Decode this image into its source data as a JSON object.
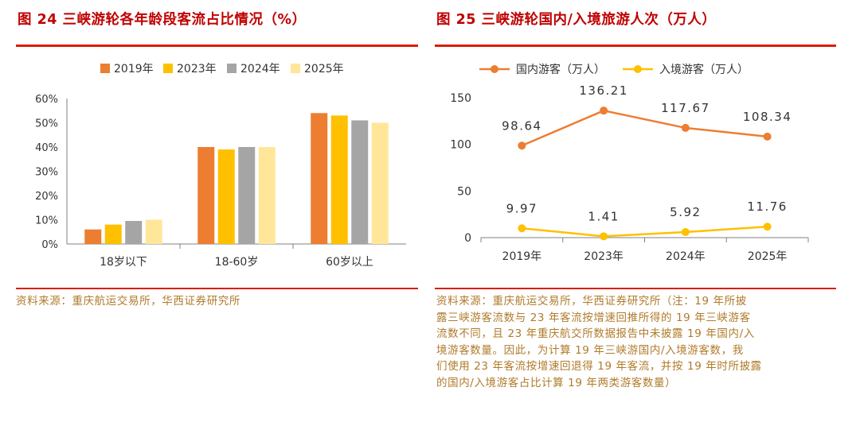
{
  "left": {
    "title": "图 24 三峡游轮各年龄段客流占比情况（%）",
    "source": "资料来源：重庆航运交易所，华西证券研究所",
    "chart_data": {
      "type": "bar",
      "title": "图 24 三峡游轮各年龄段客流占比情况（%）",
      "categories": [
        "18岁以下",
        "18-60岁",
        "60岁以上"
      ],
      "series": [
        {
          "name": "2019年",
          "color": "#ed7d31",
          "values": [
            6,
            40,
            54
          ]
        },
        {
          "name": "2023年",
          "color": "#ffc000",
          "values": [
            8,
            39,
            53
          ]
        },
        {
          "name": "2024年",
          "color": "#a5a5a5",
          "values": [
            9.5,
            40,
            51
          ]
        },
        {
          "name": "2025年",
          "color": "#ffe699",
          "values": [
            10,
            40,
            50
          ]
        }
      ],
      "ylim": [
        0,
        60
      ],
      "yticks": [
        0,
        10,
        20,
        30,
        40,
        50,
        60
      ],
      "ytick_labels": [
        "0%",
        "10%",
        "20%",
        "30%",
        "40%",
        "50%",
        "60%"
      ],
      "legend_position": "top-center"
    }
  },
  "right": {
    "title": "图 25 三峡游轮国内/入境旅游人次（万人）",
    "source_lines": [
      "资料来源：重庆航运交易所，华西证券研究所（注：19 年所披",
      "露三峡游客流数与 23 年客流按增速回推所得的 19 年三峡游客",
      "流数不同，且 23 年重庆航交所数据报告中未披露 19 年国内/入",
      "境游客数量。因此，为计算 19 年三峡游国内/入境游客数，我",
      "们使用 23 年客流按增速回退得 19 年客流，并按 19 年时所披露",
      "的国内/入境游客占比计算 19 年两类游客数量）"
    ],
    "chart_data": {
      "type": "line",
      "title": "图 25 三峡游轮国内/入境旅游人次（万人）",
      "categories": [
        "2019年",
        "2023年",
        "2024年",
        "2025年"
      ],
      "series": [
        {
          "name": "国内游客（万人）",
          "color": "#ed7d31",
          "values": [
            98.64,
            136.21,
            117.67,
            108.34
          ],
          "labels": [
            "98.64",
            "136.21",
            "117.67",
            "108.34"
          ]
        },
        {
          "name": "入境游客（万人）",
          "color": "#ffc000",
          "values": [
            9.97,
            1.41,
            5.92,
            11.76
          ],
          "labels": [
            "9.97",
            "1.41",
            "5.92",
            "11.76"
          ]
        }
      ],
      "ylim": [
        0,
        150
      ],
      "yticks": [
        0,
        50,
        100,
        150
      ],
      "ytick_labels": [
        "0",
        "50",
        "100",
        "150"
      ],
      "legend_position": "top-center"
    }
  }
}
